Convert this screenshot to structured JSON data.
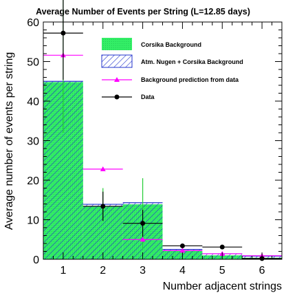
{
  "chart_data": {
    "type": "bar",
    "title": "Average Number of Events per String (L=12.85 days)",
    "xlabel": "Number adjacent strings",
    "ylabel": "Average number of events per string",
    "xlim": [
      0.5,
      6.5
    ],
    "ylim": [
      0,
      60
    ],
    "x_ticks": [
      "1",
      "2",
      "3",
      "4",
      "5",
      "6"
    ],
    "y_ticks": [
      "0",
      "10",
      "20",
      "30",
      "40",
      "50",
      "60"
    ],
    "x": [
      1,
      2,
      3,
      4,
      5,
      6
    ],
    "legend_position": "top-right",
    "grid": false,
    "series": [
      {
        "name": "Corsika Background",
        "style": "histogram-fill",
        "color": "#33ee66",
        "values": [
          44.8,
          13.4,
          13.9,
          2.1,
          1.0,
          0.4
        ]
      },
      {
        "name": "Atm. Nugen + Corsika Background",
        "style": "histogram-hatch",
        "color": "#2233cc",
        "values": [
          45.0,
          13.9,
          14.3,
          2.5,
          1.4,
          0.8
        ]
      },
      {
        "name": "Background prediction from data",
        "style": "markers-triangle",
        "color": "#ff00ff",
        "values": [
          51.6,
          22.8,
          5.0,
          2.2,
          1.4,
          0.9
        ],
        "x_err": 0.5
      },
      {
        "name": "Data",
        "style": "markers-circle-errorbars",
        "color": "#000000",
        "values": [
          57.2,
          13.4,
          9.1,
          3.4,
          3.1,
          0.2
        ],
        "y_err": [
          11.8,
          3.7,
          3.4,
          0,
          0,
          0
        ],
        "x_err": 0.5
      }
    ],
    "green_error_bars": [
      {
        "x": 1,
        "low": 32,
        "high": 66
      },
      {
        "x": 2,
        "low": 10,
        "high": 18
      },
      {
        "x": 3,
        "low": 2.5,
        "high": 20.5
      }
    ]
  }
}
